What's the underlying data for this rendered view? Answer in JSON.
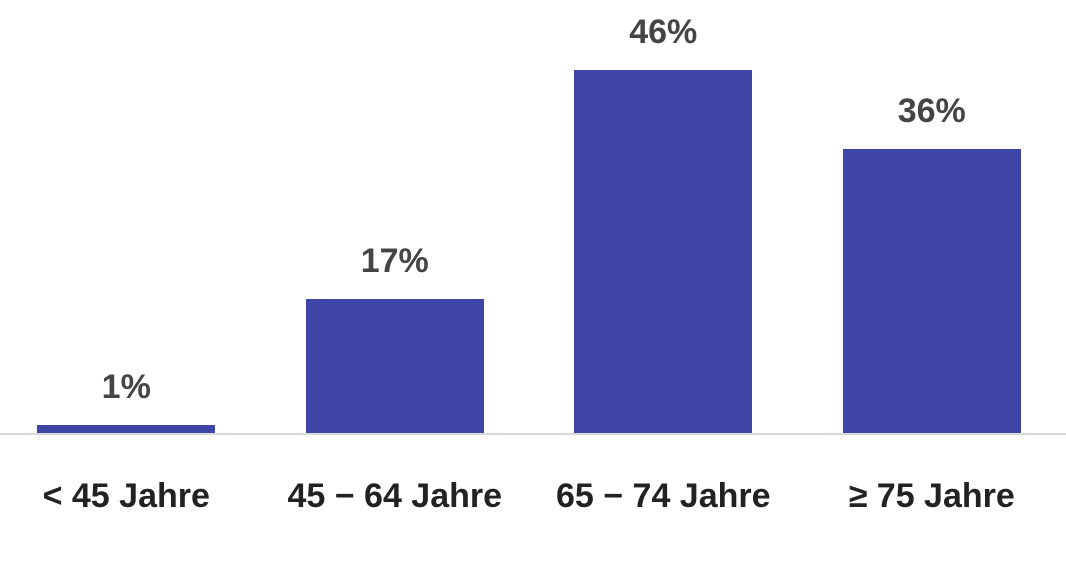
{
  "chart_data": {
    "type": "bar",
    "categories": [
      "< 45 Jahre",
      "45 − 64 Jahre",
      "65 − 74 Jahre",
      "≥ 75 Jahre"
    ],
    "values": [
      1,
      17,
      46,
      36
    ],
    "value_labels": [
      "1%",
      "17%",
      "46%",
      "36%"
    ],
    "color": "#3f45a6"
  }
}
